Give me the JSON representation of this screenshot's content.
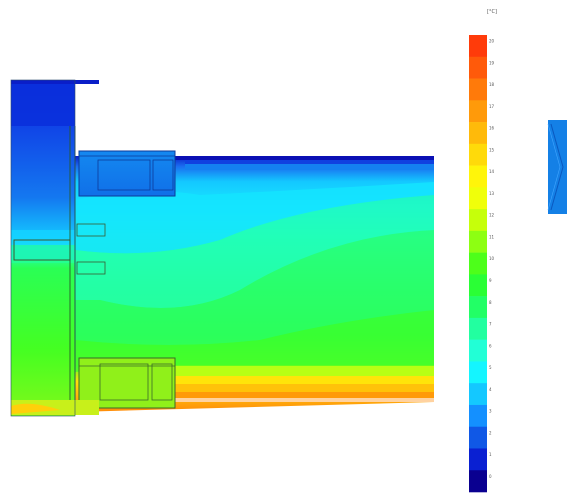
{
  "legend": {
    "unit": "[°C]",
    "ticks": [
      "20",
      "19",
      "18",
      "17",
      "16",
      "15",
      "14",
      "13",
      "12",
      "11",
      "10",
      "9",
      "8",
      "7",
      "6",
      "5",
      "4",
      "3",
      "2",
      "1",
      "0"
    ],
    "colors": [
      "#ff3b0a",
      "#ff5a0a",
      "#ff7a0a",
      "#ff9a0a",
      "#ffba0a",
      "#ffda0a",
      "#fff50a",
      "#f0ff0a",
      "#c6ff0a",
      "#8dff12",
      "#4dff1a",
      "#2aff35",
      "#22ff66",
      "#22ffa0",
      "#22ffd6",
      "#14f5ff",
      "#14c8ff",
      "#1490ff",
      "#1058e6",
      "#0a20d2",
      "#0a0090"
    ]
  },
  "nav": {
    "icon": "chevron-right-icon"
  }
}
